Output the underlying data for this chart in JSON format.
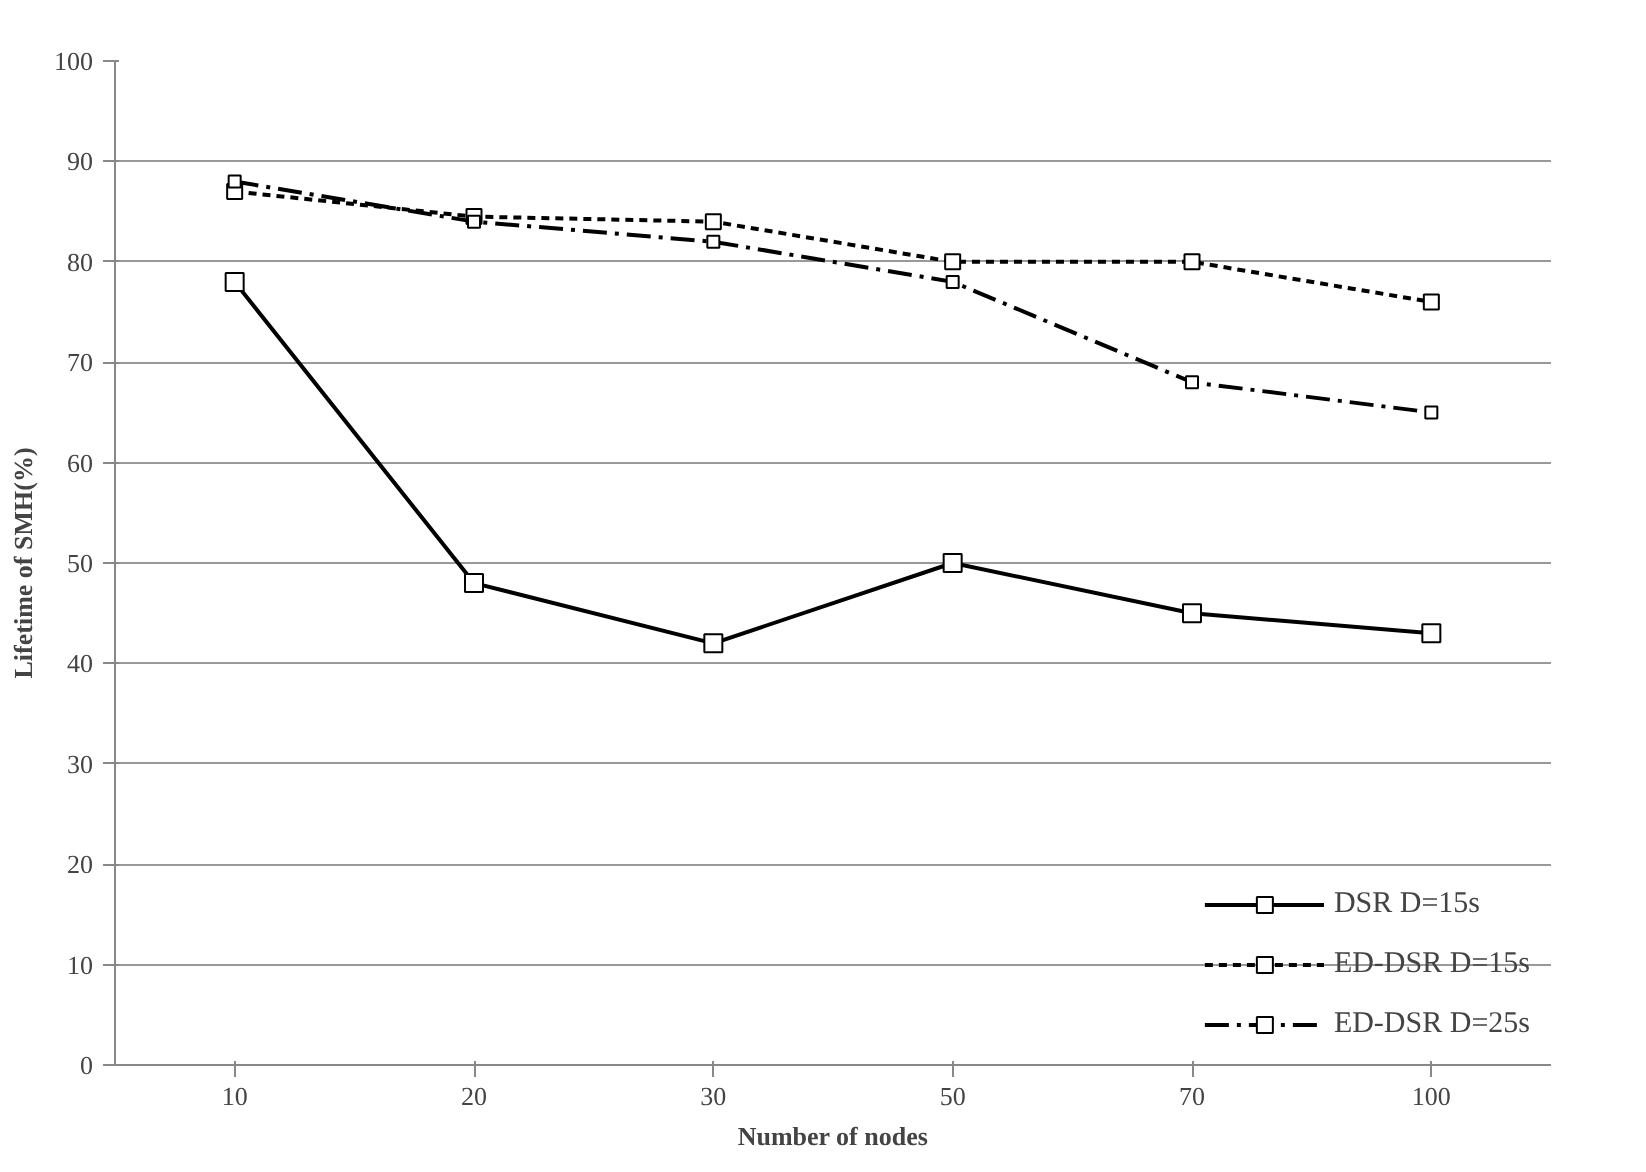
{
  "chart_data": {
    "type": "line",
    "xlabel": "Number of nodes",
    "ylabel": "Lifetime of SMH(%)",
    "categories": [
      "10",
      "20",
      "30",
      "50",
      "70",
      "100"
    ],
    "series": [
      {
        "name": "DSR D=15s",
        "color": "#000000",
        "line_style": "solid",
        "values": [
          78,
          48,
          42,
          50,
          45,
          43
        ]
      },
      {
        "name": "ED-DSR D=15s",
        "color": "#000000",
        "line_style": "dashed",
        "values": [
          87,
          84.5,
          84,
          80,
          80,
          76
        ]
      },
      {
        "name": "ED-DSR D=25s",
        "color": "#000000",
        "line_style": "dashdot",
        "values": [
          88,
          84,
          82,
          78,
          68,
          65
        ]
      }
    ],
    "ylim": [
      0,
      100
    ],
    "yticks": [
      0,
      10,
      20,
      30,
      40,
      50,
      60,
      70,
      80,
      90,
      100
    ],
    "grid": "y",
    "legend": "bottom right",
    "marker": "square"
  }
}
